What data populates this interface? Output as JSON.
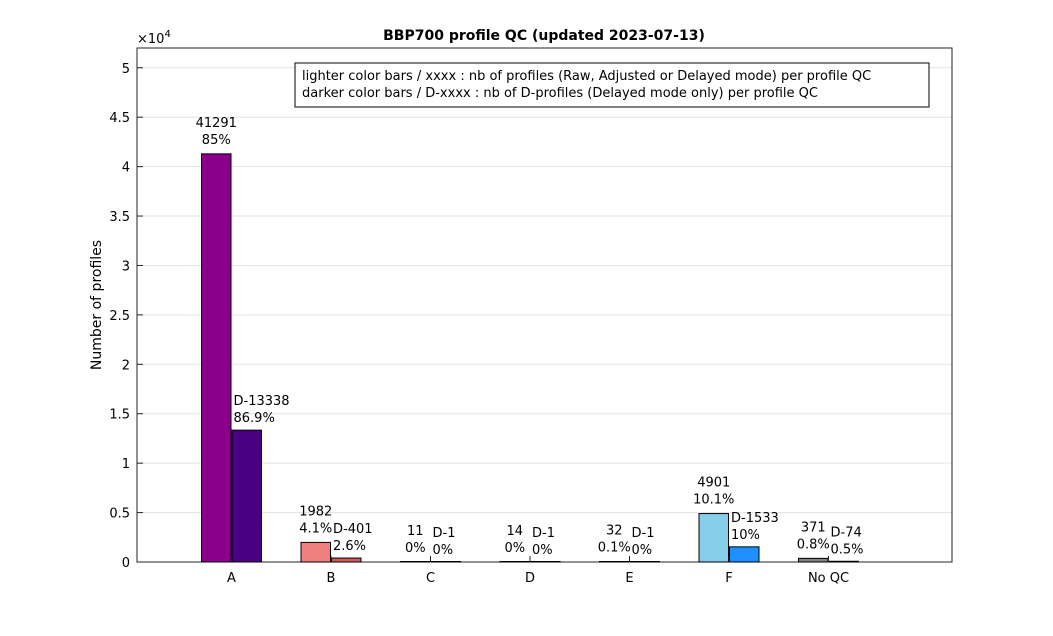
{
  "chart_data": {
    "type": "bar",
    "title": "BBP700 profile QC (updated 2023-07-13)",
    "xlabel": "",
    "ylabel": "Number of profiles",
    "y_exponent_label": "×10",
    "y_exponent_power": "4",
    "ylim": [
      0,
      52000
    ],
    "yticks": [
      0,
      5000,
      10000,
      15000,
      20000,
      25000,
      30000,
      35000,
      40000,
      45000,
      50000
    ],
    "ytick_labels": [
      "0",
      "0.5",
      "1",
      "1.5",
      "2",
      "2.5",
      "3",
      "3.5",
      "4",
      "4.5",
      "5"
    ],
    "categories": [
      "A",
      "B",
      "C",
      "D",
      "E",
      "F",
      "No QC"
    ],
    "grid": true,
    "legend_position": "top-right",
    "legend_lines": [
      "lighter color bars / xxxx : nb of profiles (Raw, Adjusted or Delayed mode) per profile QC",
      "darker color bars / D-xxxx : nb of D-profiles (Delayed mode only) per profile QC"
    ],
    "series": [
      {
        "values": [
          41291,
          1982,
          11,
          14,
          32,
          4901,
          371
        ],
        "count_labels": [
          "41291",
          "1982",
          "11",
          "14",
          "32",
          "4901",
          "371"
        ],
        "percent_labels": [
          "85%",
          "4.1%",
          "0%",
          "0%",
          "0.1%",
          "10.1%",
          "0.8%"
        ],
        "colors": [
          "#8b008b",
          "#f08080",
          "#f08080",
          "#f08080",
          "#f08080",
          "#87ceeb",
          "#808080"
        ]
      },
      {
        "values": [
          13338,
          401,
          1,
          1,
          1,
          1533,
          74
        ],
        "count_labels": [
          "D-13338",
          "D-401",
          "D-1",
          "D-1",
          "D-1",
          "D-1533",
          "D-74"
        ],
        "percent_labels": [
          "86.9%",
          "2.6%",
          "0%",
          "0%",
          "0%",
          "10%",
          "0.5%"
        ],
        "colors": [
          "#4b0082",
          "#cd5c5c",
          "#cd5c5c",
          "#cd5c5c",
          "#cd5c5c",
          "#1e90ff",
          "#404040"
        ]
      }
    ]
  }
}
